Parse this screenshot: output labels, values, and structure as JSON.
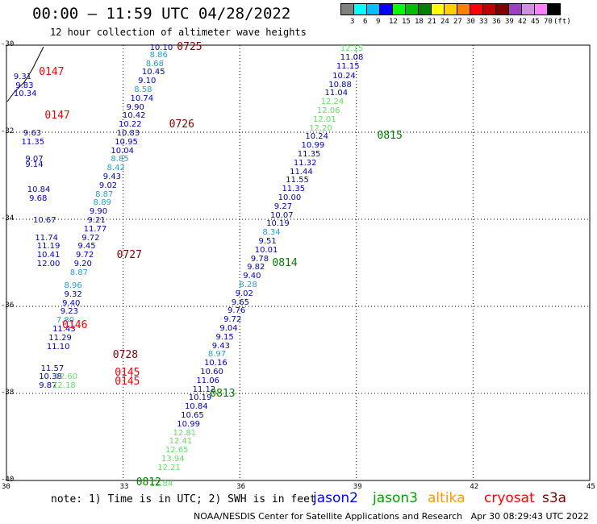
{
  "header": {
    "title": "00:00 – 11:59 UTC 04/28/2022",
    "subtitle": "12 hour collection of altimeter wave heights"
  },
  "color_scale": {
    "labels": [
      "3",
      "6",
      "9",
      "12",
      "15",
      "18",
      "21",
      "24",
      "27",
      "30",
      "33",
      "36",
      "39",
      "42",
      "45",
      "70",
      "(ft)"
    ],
    "colors": [
      "#808080",
      "#00ffff",
      "#00bfff",
      "#0000ff",
      "#00ff00",
      "#00c000",
      "#008000",
      "#ffff00",
      "#ffd000",
      "#ff8000",
      "#ff0000",
      "#c00000",
      "#800000",
      "#a040c0",
      "#d090e0",
      "#ff80ff",
      "#000000"
    ]
  },
  "axes": {
    "lon_ticks": [
      "30",
      "33",
      "36",
      "39",
      "42",
      "45"
    ],
    "lat_ticks": [
      "-30",
      "-32",
      "-34",
      "-36",
      "-38",
      "-40"
    ],
    "lon_range": [
      30,
      45
    ],
    "lat_range": [
      -40,
      -30
    ]
  },
  "observations": [
    {
      "v": "12.15",
      "lon": 38.75,
      "lat": -30.08,
      "c": "#60e060"
    },
    {
      "v": "11.08",
      "lon": 38.75,
      "lat": -30.28,
      "c": "#0000c0"
    },
    {
      "v": "11.15",
      "lon": 38.65,
      "lat": -30.48,
      "c": "#0000c0"
    },
    {
      "v": "10.24",
      "lon": 38.55,
      "lat": -30.7,
      "c": "#0000c0"
    },
    {
      "v": "10.88",
      "lon": 38.45,
      "lat": -30.9,
      "c": "#0000c0"
    },
    {
      "v": "11.04",
      "lon": 38.35,
      "lat": -31.1,
      "c": "#0000c0"
    },
    {
      "v": "12.24",
      "lon": 38.25,
      "lat": -31.3,
      "c": "#60e060"
    },
    {
      "v": "12.06",
      "lon": 38.15,
      "lat": -31.5,
      "c": "#60e060"
    },
    {
      "v": "12.01",
      "lon": 38.05,
      "lat": -31.7,
      "c": "#60e060"
    },
    {
      "v": "12.20",
      "lon": 37.95,
      "lat": -31.9,
      "c": "#60e060"
    },
    {
      "v": "10.24",
      "lon": 37.85,
      "lat": -32.1,
      "c": "#0000c0"
    },
    {
      "v": "10.99",
      "lon": 37.75,
      "lat": -32.3,
      "c": "#0000c0"
    },
    {
      "v": "11.35",
      "lon": 37.65,
      "lat": -32.5,
      "c": "#0000c0"
    },
    {
      "v": "11.32",
      "lon": 37.55,
      "lat": -32.7,
      "c": "#0000c0"
    },
    {
      "v": "11.44",
      "lon": 37.45,
      "lat": -32.9,
      "c": "#0000c0"
    },
    {
      "v": "11.55",
      "lon": 37.35,
      "lat": -33.1,
      "c": "#0000c0"
    },
    {
      "v": "11.35",
      "lon": 37.25,
      "lat": -33.3,
      "c": "#0000c0"
    },
    {
      "v": "10.00",
      "lon": 37.15,
      "lat": -33.5,
      "c": "#0000c0"
    },
    {
      "v": "9.27",
      "lon": 37.05,
      "lat": -33.7,
      "c": "#0000c0"
    },
    {
      "v": "10.07",
      "lon": 36.95,
      "lat": -33.9,
      "c": "#0000c0"
    },
    {
      "v": "10.19",
      "lon": 36.85,
      "lat": -34.1,
      "c": "#0000c0"
    },
    {
      "v": "8.34",
      "lon": 36.75,
      "lat": -34.3,
      "c": "#20a0d0"
    },
    {
      "v": "9.51",
      "lon": 36.65,
      "lat": -34.5,
      "c": "#0000c0"
    },
    {
      "v": "10.01",
      "lon": 36.55,
      "lat": -34.7,
      "c": "#0000c0"
    },
    {
      "v": "9.78",
      "lon": 36.45,
      "lat": -34.9,
      "c": "#0000c0"
    },
    {
      "v": "9.82",
      "lon": 36.35,
      "lat": -35.1,
      "c": "#0000c0"
    },
    {
      "v": "9.40",
      "lon": 36.25,
      "lat": -35.3,
      "c": "#0000c0"
    },
    {
      "v": "8.28",
      "lon": 36.15,
      "lat": -35.5,
      "c": "#20a0d0"
    },
    {
      "v": "9.02",
      "lon": 36.05,
      "lat": -35.7,
      "c": "#0000c0"
    },
    {
      "v": "9.65",
      "lon": 35.95,
      "lat": -35.9,
      "c": "#0000c0"
    },
    {
      "v": "9.76",
      "lon": 35.85,
      "lat": -36.1,
      "c": "#0000c0"
    },
    {
      "v": "9.72",
      "lon": 35.75,
      "lat": -36.3,
      "c": "#0000c0"
    },
    {
      "v": "9.04",
      "lon": 35.65,
      "lat": -36.5,
      "c": "#0000c0"
    },
    {
      "v": "9.15",
      "lon": 35.55,
      "lat": -36.7,
      "c": "#0000c0"
    },
    {
      "v": "9.43",
      "lon": 35.45,
      "lat": -36.9,
      "c": "#0000c0"
    },
    {
      "v": "8.97",
      "lon": 35.35,
      "lat": -37.1,
      "c": "#20a0d0"
    },
    {
      "v": "10.16",
      "lon": 35.25,
      "lat": -37.3,
      "c": "#0000c0"
    },
    {
      "v": "10.60",
      "lon": 35.15,
      "lat": -37.5,
      "c": "#0000c0"
    },
    {
      "v": "11.06",
      "lon": 35.05,
      "lat": -37.7,
      "c": "#0000c0"
    },
    {
      "v": "11.12",
      "lon": 34.95,
      "lat": -37.9,
      "c": "#0000c0"
    },
    {
      "v": "10.19",
      "lon": 34.85,
      "lat": -38.1,
      "c": "#0000c0"
    },
    {
      "v": "10.84",
      "lon": 34.75,
      "lat": -38.3,
      "c": "#0000c0"
    },
    {
      "v": "10.65",
      "lon": 34.65,
      "lat": -38.5,
      "c": "#0000c0"
    },
    {
      "v": "10.99",
      "lon": 34.55,
      "lat": -38.7,
      "c": "#0000c0"
    },
    {
      "v": "12.81",
      "lon": 34.45,
      "lat": -38.9,
      "c": "#60e060"
    },
    {
      "v": "12.41",
      "lon": 34.35,
      "lat": -39.1,
      "c": "#60e060"
    },
    {
      "v": "12.65",
      "lon": 34.25,
      "lat": -39.3,
      "c": "#60e060"
    },
    {
      "v": "13.94",
      "lon": 34.15,
      "lat": -39.5,
      "c": "#60e060"
    },
    {
      "v": "12.21",
      "lon": 34.05,
      "lat": -39.7,
      "c": "#60e060"
    },
    {
      "v": "12.84",
      "lon": 33.85,
      "lat": -40.1,
      "c": "#60e060"
    },
    {
      "v": "10.10",
      "lon": 33.85,
      "lat": -30.02,
      "c": "#0000c0"
    },
    {
      "v": "8.86",
      "lon": 33.85,
      "lat": -30.22,
      "c": "#20a0d0"
    },
    {
      "v": "8.68",
      "lon": 33.75,
      "lat": -30.42,
      "c": "#20a0d0"
    },
    {
      "v": "10.45",
      "lon": 33.65,
      "lat": -30.62,
      "c": "#0000c0"
    },
    {
      "v": "9.10",
      "lon": 33.55,
      "lat": -30.82,
      "c": "#0000c0"
    },
    {
      "v": "8.58",
      "lon": 33.45,
      "lat": -31.02,
      "c": "#20a0d0"
    },
    {
      "v": "10.74",
      "lon": 33.35,
      "lat": -31.22,
      "c": "#0000c0"
    },
    {
      "v": "9.90",
      "lon": 33.25,
      "lat": -31.42,
      "c": "#0000c0"
    },
    {
      "v": "10.42",
      "lon": 33.15,
      "lat": -31.62,
      "c": "#0000c0"
    },
    {
      "v": "10.22",
      "lon": 33.05,
      "lat": -31.82,
      "c": "#0000c0"
    },
    {
      "v": "10.83",
      "lon": 33.0,
      "lat": -32.02,
      "c": "#0000c0"
    },
    {
      "v": "10.95",
      "lon": 32.95,
      "lat": -32.22,
      "c": "#0000c0"
    },
    {
      "v": "10.04",
      "lon": 32.85,
      "lat": -32.42,
      "c": "#0000c0"
    },
    {
      "v": "8.85",
      "lon": 32.85,
      "lat": -32.62,
      "c": "#20a0d0"
    },
    {
      "v": "8.42",
      "lon": 32.75,
      "lat": -32.82,
      "c": "#20a0d0"
    },
    {
      "v": "9.43",
      "lon": 32.65,
      "lat": -33.02,
      "c": "#0000c0"
    },
    {
      "v": "9.02",
      "lon": 32.55,
      "lat": -33.22,
      "c": "#0000c0"
    },
    {
      "v": "8.87",
      "lon": 32.45,
      "lat": -33.42,
      "c": "#20a0d0"
    },
    {
      "v": "8.89",
      "lon": 32.4,
      "lat": -33.62,
      "c": "#20a0d0"
    },
    {
      "v": "9.90",
      "lon": 32.3,
      "lat": -33.82,
      "c": "#0000c0"
    },
    {
      "v": "9.21",
      "lon": 32.25,
      "lat": -34.02,
      "c": "#0000c0"
    },
    {
      "v": "11.77",
      "lon": 32.15,
      "lat": -34.22,
      "c": "#0000c0"
    },
    {
      "v": "9.72",
      "lon": 32.1,
      "lat": -34.42,
      "c": "#0000c0"
    },
    {
      "v": "9.45",
      "lon": 32.0,
      "lat": -34.62,
      "c": "#0000c0"
    },
    {
      "v": "9.72",
      "lon": 31.95,
      "lat": -34.82,
      "c": "#0000c0"
    },
    {
      "v": "9.20",
      "lon": 31.9,
      "lat": -35.02,
      "c": "#0000c0"
    },
    {
      "v": "8.87",
      "lon": 31.8,
      "lat": -35.22,
      "c": "#20a0d0"
    },
    {
      "v": "8.96",
      "lon": 31.65,
      "lat": -35.52,
      "c": "#20a0d0"
    },
    {
      "v": "9.32",
      "lon": 31.65,
      "lat": -35.72,
      "c": "#0000c0"
    },
    {
      "v": "9.40",
      "lon": 31.6,
      "lat": -35.92,
      "c": "#0000c0"
    },
    {
      "v": "9.23",
      "lon": 31.55,
      "lat": -36.12,
      "c": "#0000c0"
    },
    {
      "v": "7.80",
      "lon": 31.45,
      "lat": -36.32,
      "c": "#20a0d0"
    },
    {
      "v": "11.43",
      "lon": 31.35,
      "lat": -36.52,
      "c": "#0000c0"
    },
    {
      "v": "11.29",
      "lon": 31.25,
      "lat": -36.72,
      "c": "#0000c0"
    },
    {
      "v": "11.10",
      "lon": 31.2,
      "lat": -36.92,
      "c": "#0000c0"
    },
    {
      "v": "9.31",
      "lon": 30.35,
      "lat": -30.72,
      "c": "#0000c0"
    },
    {
      "v": "9.83",
      "lon": 30.4,
      "lat": -30.92,
      "c": "#0000c0"
    },
    {
      "v": "10.34",
      "lon": 30.35,
      "lat": -31.12,
      "c": "#0000c0"
    },
    {
      "v": "9.63",
      "lon": 30.6,
      "lat": -32.02,
      "c": "#0000c0"
    },
    {
      "v": "11.35",
      "lon": 30.55,
      "lat": -32.22,
      "c": "#0000c0"
    },
    {
      "v": "9.07",
      "lon": 30.65,
      "lat": -32.62,
      "c": "#0000c0"
    },
    {
      "v": "9.14",
      "lon": 30.65,
      "lat": -32.74,
      "c": "#0000c0"
    },
    {
      "v": "10.84",
      "lon": 30.7,
      "lat": -33.32,
      "c": "#0000c0"
    },
    {
      "v": "9.68",
      "lon": 30.75,
      "lat": -33.52,
      "c": "#0000c0"
    },
    {
      "v": "10.67",
      "lon": 30.85,
      "lat": -34.02,
      "c": "#0000c0"
    },
    {
      "v": "11.74",
      "lon": 30.9,
      "lat": -34.42,
      "c": "#0000c0"
    },
    {
      "v": "11.19",
      "lon": 30.95,
      "lat": -34.62,
      "c": "#0000c0"
    },
    {
      "v": "10.41",
      "lon": 30.95,
      "lat": -34.82,
      "c": "#0000c0"
    },
    {
      "v": "12.00",
      "lon": 30.95,
      "lat": -35.02,
      "c": "#0000c0"
    },
    {
      "v": "11.57",
      "lon": 31.05,
      "lat": -37.42,
      "c": "#0000c0"
    },
    {
      "v": "10.38",
      "lon": 31.0,
      "lat": -37.62,
      "c": "#0000c0"
    },
    {
      "v": "9.87",
      "lon": 31.0,
      "lat": -37.82,
      "c": "#0000c0"
    },
    {
      "v": "12.60",
      "lon": 31.4,
      "lat": -37.62,
      "c": "#60e060"
    },
    {
      "v": "12.18",
      "lon": 31.35,
      "lat": -37.82,
      "c": "#60e060"
    }
  ],
  "time_labels": [
    {
      "t": "0725",
      "lon": 34.55,
      "lat": -30.02,
      "c": "#800000"
    },
    {
      "t": "0726",
      "lon": 34.35,
      "lat": -31.82,
      "c": "#800000"
    },
    {
      "t": "0727",
      "lon": 33.0,
      "lat": -34.82,
      "c": "#800000"
    },
    {
      "t": "0728",
      "lon": 32.9,
      "lat": -37.12,
      "c": "#800000"
    },
    {
      "t": "0147",
      "lon": 31.0,
      "lat": -30.62,
      "c": "#ff0000"
    },
    {
      "t": "0147",
      "lon": 31.15,
      "lat": -31.62,
      "c": "#ff0000"
    },
    {
      "t": "0146",
      "lon": 31.6,
      "lat": -36.42,
      "c": "#ff0000"
    },
    {
      "t": "0145",
      "lon": 32.95,
      "lat": -37.52,
      "c": "#ff0000"
    },
    {
      "t": "0145",
      "lon": 32.95,
      "lat": -37.72,
      "c": "#ff0000"
    },
    {
      "t": "0815",
      "lon": 39.7,
      "lat": -32.08,
      "c": "#008000"
    },
    {
      "t": "0814",
      "lon": 37.0,
      "lat": -35.0,
      "c": "#008000"
    },
    {
      "t": "0813",
      "lon": 35.4,
      "lat": -38.0,
      "c": "#008000"
    },
    {
      "t": "0812",
      "lon": 33.5,
      "lat": -40.18,
      "c": "#008000"
    }
  ],
  "note": "note: 1) Time is in UTC; 2) SWH is in feet",
  "legend": [
    {
      "name": "jason2",
      "color": "#0000ff"
    },
    {
      "name": "jason3",
      "color": "#00a000"
    },
    {
      "name": "altika",
      "color": "#ff9900"
    },
    {
      "name": "cryosat",
      "color": "#ff0000"
    },
    {
      "name": "s3a",
      "color": "#800000"
    }
  ],
  "footer": "NOAA/NESDIS Center for Satellite Applications and Research   Apr 30 08:29:43 UTC 2022"
}
